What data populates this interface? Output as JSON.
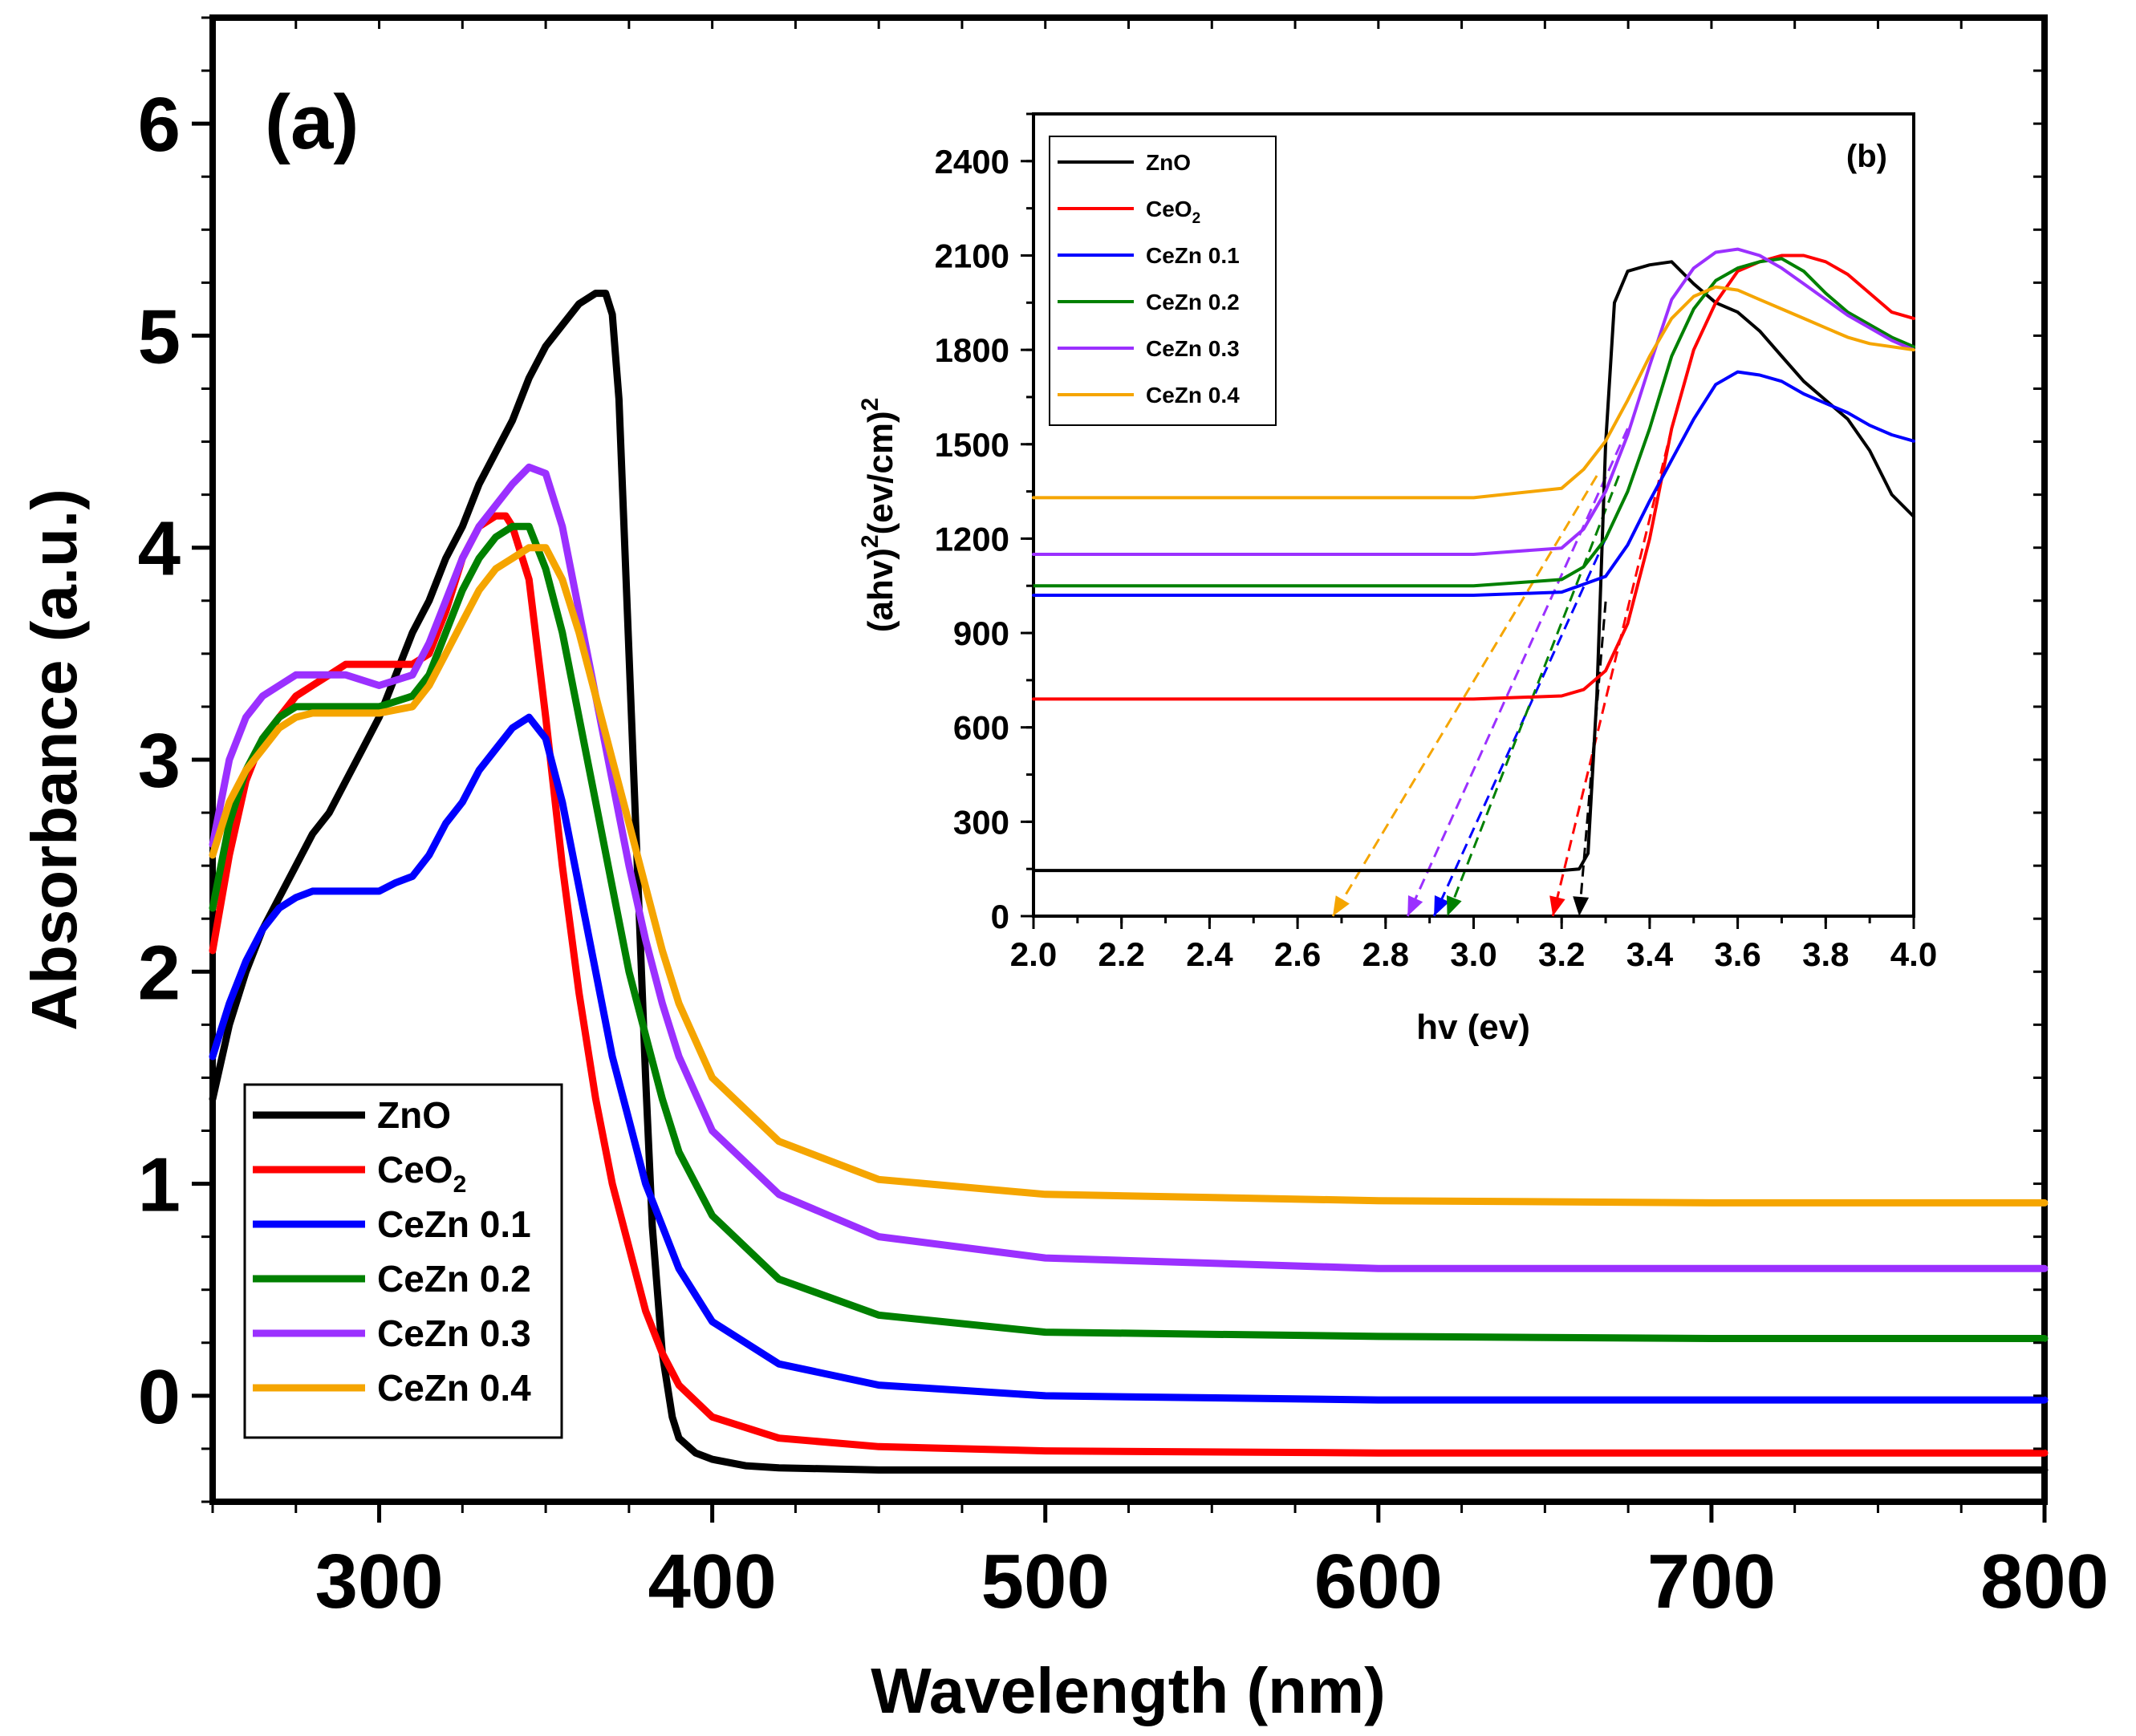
{
  "chart_data": [
    {
      "panel": "(a)",
      "type": "line",
      "xlabel": "Wavelength (nm)",
      "ylabel": "Absorbance (a.u.)",
      "xlim": [
        250,
        800
      ],
      "ylim": [
        -0.5,
        6.5
      ],
      "xticks": [
        "300",
        "400",
        "500",
        "600",
        "700",
        "800"
      ],
      "yticks": [
        "0",
        "1",
        "2",
        "3",
        "4",
        "5",
        "6"
      ],
      "legend_position": "bottom-left",
      "series": [
        {
          "name": "ZnO",
          "legend": {
            "base": "ZnO",
            "sub": ""
          },
          "color": "#000000",
          "x": [
            250,
            255,
            260,
            265,
            270,
            275,
            280,
            285,
            290,
            295,
            300,
            305,
            310,
            315,
            320,
            325,
            330,
            335,
            340,
            345,
            350,
            355,
            360,
            365,
            368,
            370,
            372,
            375,
            378,
            380,
            382,
            385,
            388,
            390,
            395,
            400,
            410,
            420,
            450,
            500,
            600,
            700,
            800
          ],
          "y": [
            1.4,
            1.75,
            2.0,
            2.2,
            2.35,
            2.5,
            2.65,
            2.75,
            2.9,
            3.05,
            3.2,
            3.4,
            3.6,
            3.75,
            3.95,
            4.1,
            4.3,
            4.45,
            4.6,
            4.8,
            4.95,
            5.05,
            5.15,
            5.2,
            5.2,
            5.1,
            4.7,
            3.5,
            2.3,
            1.5,
            0.8,
            0.2,
            -0.1,
            -0.2,
            -0.27,
            -0.3,
            -0.33,
            -0.34,
            -0.35,
            -0.35,
            -0.35,
            -0.35,
            -0.35
          ]
        },
        {
          "name": "CeO2",
          "legend": {
            "base": "CeO",
            "sub": "2"
          },
          "color": "#ff0000",
          "x": [
            250,
            255,
            260,
            265,
            270,
            275,
            280,
            285,
            290,
            300,
            310,
            315,
            320,
            325,
            330,
            335,
            338,
            340,
            345,
            350,
            355,
            360,
            365,
            370,
            375,
            380,
            385,
            390,
            400,
            420,
            450,
            500,
            600,
            700,
            800
          ],
          "y": [
            2.1,
            2.55,
            2.9,
            3.1,
            3.2,
            3.3,
            3.35,
            3.4,
            3.45,
            3.45,
            3.45,
            3.5,
            3.7,
            3.95,
            4.1,
            4.15,
            4.15,
            4.1,
            3.85,
            3.2,
            2.5,
            1.9,
            1.4,
            1.0,
            0.7,
            0.4,
            0.2,
            0.05,
            -0.1,
            -0.2,
            -0.24,
            -0.26,
            -0.27,
            -0.27,
            -0.27
          ]
        },
        {
          "name": "CeZn 0.1",
          "legend": {
            "base": "CeZn 0.1",
            "sub": ""
          },
          "color": "#0000ff",
          "x": [
            250,
            255,
            260,
            265,
            270,
            275,
            280,
            290,
            300,
            305,
            310,
            315,
            320,
            325,
            330,
            335,
            340,
            345,
            350,
            355,
            360,
            365,
            370,
            375,
            380,
            385,
            390,
            400,
            420,
            450,
            500,
            600,
            700,
            800
          ],
          "y": [
            1.6,
            1.85,
            2.05,
            2.2,
            2.3,
            2.35,
            2.38,
            2.38,
            2.38,
            2.42,
            2.45,
            2.55,
            2.7,
            2.8,
            2.95,
            3.05,
            3.15,
            3.2,
            3.1,
            2.8,
            2.4,
            2.0,
            1.6,
            1.3,
            1.0,
            0.8,
            0.6,
            0.35,
            0.15,
            0.05,
            0.0,
            -0.02,
            -0.02,
            -0.02
          ]
        },
        {
          "name": "CeZn 0.2",
          "legend": {
            "base": "CeZn 0.2",
            "sub": ""
          },
          "color": "#008000",
          "x": [
            250,
            255,
            260,
            265,
            270,
            275,
            280,
            290,
            300,
            310,
            315,
            320,
            325,
            330,
            335,
            340,
            345,
            350,
            355,
            360,
            365,
            370,
            375,
            380,
            385,
            390,
            400,
            420,
            450,
            500,
            600,
            700,
            800
          ],
          "y": [
            2.3,
            2.7,
            2.95,
            3.1,
            3.2,
            3.25,
            3.25,
            3.25,
            3.25,
            3.3,
            3.4,
            3.6,
            3.8,
            3.95,
            4.05,
            4.1,
            4.1,
            3.9,
            3.6,
            3.2,
            2.8,
            2.4,
            2.0,
            1.7,
            1.4,
            1.15,
            0.85,
            0.55,
            0.38,
            0.3,
            0.28,
            0.27,
            0.27
          ]
        },
        {
          "name": "CeZn 0.3",
          "legend": {
            "base": "CeZn 0.3",
            "sub": ""
          },
          "color": "#9b30ff",
          "x": [
            250,
            255,
            260,
            265,
            270,
            275,
            280,
            290,
            300,
            310,
            315,
            320,
            325,
            330,
            335,
            340,
            345,
            350,
            355,
            360,
            365,
            370,
            375,
            380,
            385,
            390,
            400,
            420,
            450,
            500,
            600,
            700,
            800
          ],
          "y": [
            2.6,
            3.0,
            3.2,
            3.3,
            3.35,
            3.4,
            3.4,
            3.4,
            3.35,
            3.4,
            3.55,
            3.75,
            3.95,
            4.1,
            4.2,
            4.3,
            4.38,
            4.35,
            4.1,
            3.7,
            3.3,
            2.9,
            2.5,
            2.15,
            1.85,
            1.6,
            1.25,
            0.95,
            0.75,
            0.65,
            0.6,
            0.6,
            0.6
          ]
        },
        {
          "name": "CeZn 0.4",
          "legend": {
            "base": "CeZn 0.4",
            "sub": ""
          },
          "color": "#f5a500",
          "x": [
            250,
            255,
            260,
            265,
            270,
            275,
            280,
            290,
            300,
            310,
            315,
            320,
            325,
            330,
            335,
            340,
            345,
            350,
            355,
            360,
            365,
            370,
            375,
            380,
            385,
            390,
            400,
            420,
            450,
            500,
            600,
            700,
            800
          ],
          "y": [
            2.55,
            2.8,
            2.95,
            3.05,
            3.15,
            3.2,
            3.22,
            3.22,
            3.22,
            3.25,
            3.35,
            3.5,
            3.65,
            3.8,
            3.9,
            3.95,
            4.0,
            4.0,
            3.85,
            3.6,
            3.3,
            3.0,
            2.7,
            2.4,
            2.1,
            1.85,
            1.5,
            1.2,
            1.02,
            0.95,
            0.92,
            0.91,
            0.91
          ]
        }
      ]
    },
    {
      "panel": "(b)",
      "type": "line",
      "xlabel": "hv (ev)",
      "ylabel_parts": [
        {
          "t": "(ahv)",
          "sup": false
        },
        {
          "t": "2",
          "sup": true
        },
        {
          "t": "(ev/cm)",
          "sup": false
        },
        {
          "t": "2",
          "sup": true
        }
      ],
      "xlim": [
        2.0,
        4.0
      ],
      "ylim": [
        0,
        2550
      ],
      "xticks": [
        "2.0",
        "2.2",
        "2.4",
        "2.6",
        "2.8",
        "3.0",
        "3.2",
        "3.4",
        "3.6",
        "3.8",
        "4.0"
      ],
      "yticks": [
        "0",
        "300",
        "600",
        "900",
        "1200",
        "1500",
        "1800",
        "2100",
        "2400"
      ],
      "legend_position": "top-left",
      "series": [
        {
          "name": "ZnO",
          "legend": {
            "base": "ZnO",
            "sub": ""
          },
          "color": "#000000",
          "x": [
            2.0,
            3.0,
            3.2,
            3.24,
            3.26,
            3.28,
            3.3,
            3.32,
            3.35,
            3.4,
            3.45,
            3.5,
            3.55,
            3.6,
            3.65,
            3.7,
            3.75,
            3.8,
            3.85,
            3.9,
            3.95,
            4.0
          ],
          "y": [
            145,
            145,
            145,
            150,
            200,
            700,
            1500,
            1950,
            2050,
            2070,
            2080,
            2010,
            1950,
            1920,
            1860,
            1780,
            1700,
            1640,
            1580,
            1480,
            1340,
            1270
          ]
        },
        {
          "name": "CeO2",
          "legend": {
            "base": "CeO",
            "sub": "2"
          },
          "color": "#ff0000",
          "x": [
            2.0,
            3.0,
            3.2,
            3.25,
            3.3,
            3.35,
            3.4,
            3.45,
            3.5,
            3.55,
            3.6,
            3.65,
            3.7,
            3.75,
            3.8,
            3.85,
            3.9,
            3.95,
            4.0
          ],
          "y": [
            690,
            690,
            700,
            720,
            780,
            930,
            1200,
            1550,
            1800,
            1950,
            2050,
            2080,
            2100,
            2100,
            2080,
            2040,
            1980,
            1920,
            1900
          ]
        },
        {
          "name": "CeZn 0.1",
          "legend": {
            "base": "CeZn 0.1",
            "sub": ""
          },
          "color": "#0000ff",
          "x": [
            2.0,
            3.0,
            3.2,
            3.3,
            3.35,
            3.4,
            3.45,
            3.5,
            3.55,
            3.6,
            3.65,
            3.7,
            3.75,
            3.8,
            3.85,
            3.9,
            3.95,
            4.0
          ],
          "y": [
            1020,
            1020,
            1030,
            1080,
            1180,
            1320,
            1450,
            1580,
            1690,
            1730,
            1720,
            1700,
            1660,
            1630,
            1600,
            1560,
            1530,
            1510
          ]
        },
        {
          "name": "CeZn 0.2",
          "legend": {
            "base": "CeZn 0.2",
            "sub": ""
          },
          "color": "#008000",
          "x": [
            2.0,
            3.0,
            3.2,
            3.25,
            3.3,
            3.35,
            3.4,
            3.45,
            3.5,
            3.55,
            3.6,
            3.65,
            3.7,
            3.75,
            3.8,
            3.85,
            3.9,
            3.95,
            4.0
          ],
          "y": [
            1050,
            1050,
            1070,
            1110,
            1200,
            1350,
            1550,
            1780,
            1930,
            2020,
            2060,
            2080,
            2090,
            2050,
            1980,
            1920,
            1880,
            1840,
            1810
          ]
        },
        {
          "name": "CeZn 0.3",
          "legend": {
            "base": "CeZn 0.3",
            "sub": ""
          },
          "color": "#9b30ff",
          "x": [
            2.0,
            3.0,
            3.2,
            3.25,
            3.3,
            3.35,
            3.4,
            3.45,
            3.5,
            3.55,
            3.6,
            3.65,
            3.7,
            3.75,
            3.8,
            3.85,
            3.9,
            3.95,
            4.0
          ],
          "y": [
            1150,
            1150,
            1170,
            1230,
            1350,
            1530,
            1750,
            1960,
            2060,
            2110,
            2120,
            2100,
            2060,
            2010,
            1960,
            1910,
            1870,
            1830,
            1800
          ]
        },
        {
          "name": "CeZn 0.4",
          "legend": {
            "base": "CeZn 0.4",
            "sub": ""
          },
          "color": "#f5a500",
          "x": [
            2.0,
            3.0,
            3.2,
            3.25,
            3.3,
            3.35,
            3.4,
            3.45,
            3.5,
            3.55,
            3.6,
            3.65,
            3.7,
            3.75,
            3.8,
            3.85,
            3.9,
            3.95,
            4.0
          ],
          "y": [
            1330,
            1330,
            1360,
            1420,
            1510,
            1640,
            1780,
            1900,
            1970,
            2000,
            1990,
            1960,
            1930,
            1900,
            1870,
            1840,
            1820,
            1810,
            1800
          ]
        }
      ],
      "tangent_lines": [
        {
          "color": "#000000",
          "x": [
            3.3,
            3.24
          ],
          "y": [
            1000,
            0
          ],
          "band_gap_ev": 3.24
        },
        {
          "color": "#ff0000",
          "x": [
            3.45,
            3.18
          ],
          "y": [
            1550,
            0
          ],
          "band_gap_ev": 3.18
        },
        {
          "color": "#0000ff",
          "x": [
            3.3,
            2.91
          ],
          "y": [
            1200,
            0
          ],
          "band_gap_ev": 2.91
        },
        {
          "color": "#008000",
          "x": [
            3.33,
            2.94
          ],
          "y": [
            1400,
            0
          ],
          "band_gap_ev": 2.94
        },
        {
          "color": "#9b30ff",
          "x": [
            3.35,
            2.85
          ],
          "y": [
            1550,
            0
          ],
          "band_gap_ev": 2.85
        },
        {
          "color": "#f5a500",
          "x": [
            3.28,
            2.68
          ],
          "y": [
            1400,
            0
          ],
          "band_gap_ev": 2.68
        }
      ]
    }
  ]
}
